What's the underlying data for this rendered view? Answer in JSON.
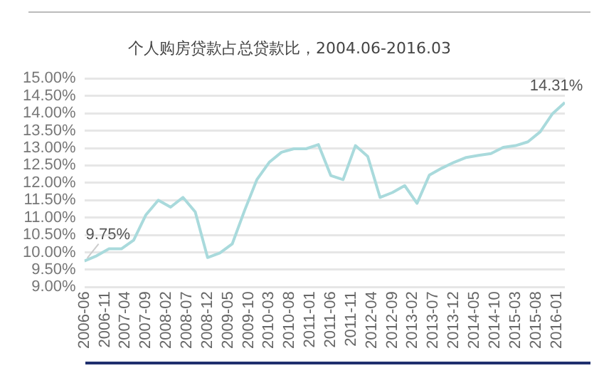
{
  "chart_data": {
    "type": "line",
    "title": "个人购房贷款占总贷款比，2004.06-2016.03",
    "x": [
      "2006-06",
      "2006-09",
      "2006-12",
      "2007-03",
      "2007-06",
      "2007-09",
      "2007-12",
      "2008-03",
      "2008-06",
      "2008-09",
      "2008-12",
      "2009-03",
      "2009-06",
      "2009-09",
      "2009-12",
      "2010-03",
      "2010-06",
      "2010-09",
      "2010-12",
      "2011-03",
      "2011-06",
      "2011-09",
      "2011-12",
      "2012-03",
      "2012-06",
      "2012-09",
      "2012-12",
      "2013-03",
      "2013-06",
      "2013-09",
      "2013-12",
      "2014-03",
      "2014-06",
      "2014-09",
      "2014-12",
      "2015-03",
      "2015-06",
      "2015-09",
      "2015-12",
      "2016-03"
    ],
    "series": [
      {
        "color": "#a9dadc",
        "values": [
          9.75,
          9.9,
          10.1,
          10.1,
          10.35,
          11.08,
          11.5,
          11.3,
          11.58,
          11.16,
          9.85,
          9.98,
          10.24,
          11.2,
          12.09,
          12.59,
          12.88,
          12.98,
          12.98,
          13.1,
          12.21,
          12.09,
          13.07,
          12.76,
          11.58,
          11.72,
          11.92,
          11.41,
          12.22,
          12.42,
          12.59,
          12.73,
          12.79,
          12.84,
          13.02,
          13.07,
          13.18,
          13.47,
          13.99,
          14.31
        ],
        "value_labels": [
          "9.75%",
          null,
          null,
          null,
          null,
          null,
          null,
          null,
          null,
          null,
          null,
          null,
          null,
          null,
          null,
          null,
          null,
          null,
          null,
          null,
          null,
          null,
          null,
          null,
          null,
          null,
          null,
          null,
          null,
          null,
          null,
          null,
          null,
          null,
          null,
          null,
          null,
          null,
          null,
          "14.31%"
        ]
      }
    ],
    "xlim": [
      "2006-06",
      "2016-03"
    ],
    "xticks": [
      {
        "value": "2006-06",
        "label": "2006-06"
      },
      {
        "value": "2006-11",
        "label": "2006-11"
      },
      {
        "value": "2007-04",
        "label": "2007-04"
      },
      {
        "value": "2007-09",
        "label": "2007-09"
      },
      {
        "value": "2008-02",
        "label": "2008-02"
      },
      {
        "value": "2008-07",
        "label": "2008-07"
      },
      {
        "value": "2008-12",
        "label": "2008-12"
      },
      {
        "value": "2009-05",
        "label": "2009-05"
      },
      {
        "value": "2009-10",
        "label": "2009-10"
      },
      {
        "value": "2010-03",
        "label": "2010-03"
      },
      {
        "value": "2010-08",
        "label": "2010-08"
      },
      {
        "value": "2011-01",
        "label": "2011-01"
      },
      {
        "value": "2011-06",
        "label": "2011-06"
      },
      {
        "value": "2011-11",
        "label": "2011-11"
      },
      {
        "value": "2012-04",
        "label": "2012-04"
      },
      {
        "value": "2012-09",
        "label": "2012-09"
      },
      {
        "value": "2013-02",
        "label": "2013-02"
      },
      {
        "value": "2013-07",
        "label": "2013-07"
      },
      {
        "value": "2013-12",
        "label": "2013-12"
      },
      {
        "value": "2014-05",
        "label": "2014-05"
      },
      {
        "value": "2014-10",
        "label": "2014-10"
      },
      {
        "value": "2015-03",
        "label": "2015-03"
      },
      {
        "value": "2015-08",
        "label": "2015-08"
      },
      {
        "value": "2016-01",
        "label": "2016-01"
      }
    ],
    "ylim": [
      9,
      15
    ],
    "yticks": [
      {
        "value": 9,
        "label": "9.00%"
      },
      {
        "value": 9.5,
        "label": "9.50%"
      },
      {
        "value": 10,
        "label": "10.00%"
      },
      {
        "value": 10.5,
        "label": "10.50%"
      },
      {
        "value": 11,
        "label": "11.00%"
      },
      {
        "value": 11.5,
        "label": "11.50%"
      },
      {
        "value": 12,
        "label": "12.00%"
      },
      {
        "value": 12.5,
        "label": "12.50%"
      },
      {
        "value": 13,
        "label": "13.00%"
      },
      {
        "value": 13.5,
        "label": "13.50%"
      },
      {
        "value": 14,
        "label": "14.00%"
      },
      {
        "value": 14.5,
        "label": "14.50%"
      },
      {
        "value": 15,
        "label": "15.00%"
      }
    ],
    "grid": "y",
    "legend": false,
    "marker": "none",
    "line_style": "solid"
  }
}
